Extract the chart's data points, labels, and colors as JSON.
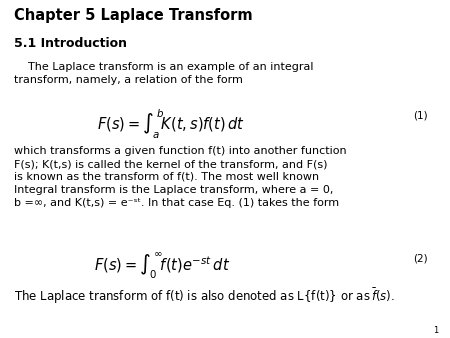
{
  "title": "Chapter 5 Laplace Transform",
  "subtitle": "5.1 Introduction",
  "page_number": "1",
  "bg_color": "#ffffff",
  "text_color": "#000000",
  "title_fontsize": 10.5,
  "subtitle_fontsize": 9.0,
  "body_fontsize": 8.0,
  "eq_fontsize": 10.5,
  "eq_label_fontsize": 7.5,
  "last_line_fontsize": 8.5,
  "page_num_fontsize": 6
}
